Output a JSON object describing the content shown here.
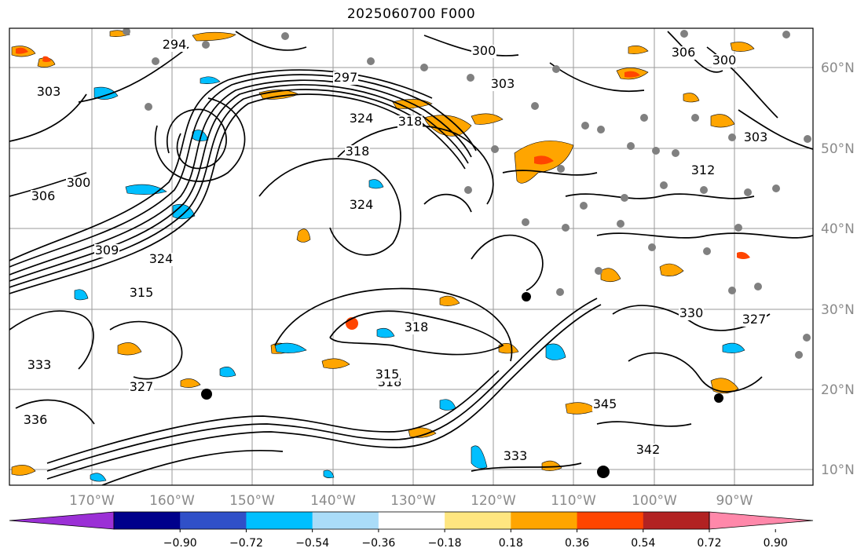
{
  "title": "2025060700 F000",
  "map": {
    "lat_ticks": [
      "60°N",
      "50°N",
      "40°N",
      "30°N",
      "20°N",
      "10°N"
    ],
    "lon_ticks": [
      "170°W",
      "160°W",
      "150°W",
      "140°W",
      "130°W",
      "120°W",
      "110°W",
      "100°W",
      "90°W"
    ],
    "contour_labels": [
      "294",
      "300",
      "303",
      "306",
      "309",
      "297",
      "318",
      "324",
      "315",
      "327",
      "330",
      "333",
      "336",
      "342",
      "345",
      "312"
    ],
    "colors": {
      "land_dots": "#808080",
      "contour": "#000000"
    }
  },
  "colorbar": {
    "labels": [
      "−0.90",
      "−0.72",
      "−0.54",
      "−0.36",
      "−0.18",
      "0.18",
      "0.36",
      "0.54",
      "0.72",
      "0.90"
    ],
    "colors": [
      "#9b30d6",
      "#00008b",
      "#3050c8",
      "#00bfff",
      "#aadcf8",
      "#ffffff",
      "#ffe680",
      "#ffa500",
      "#ff4500",
      "#b22222",
      "#ff88aa"
    ]
  }
}
